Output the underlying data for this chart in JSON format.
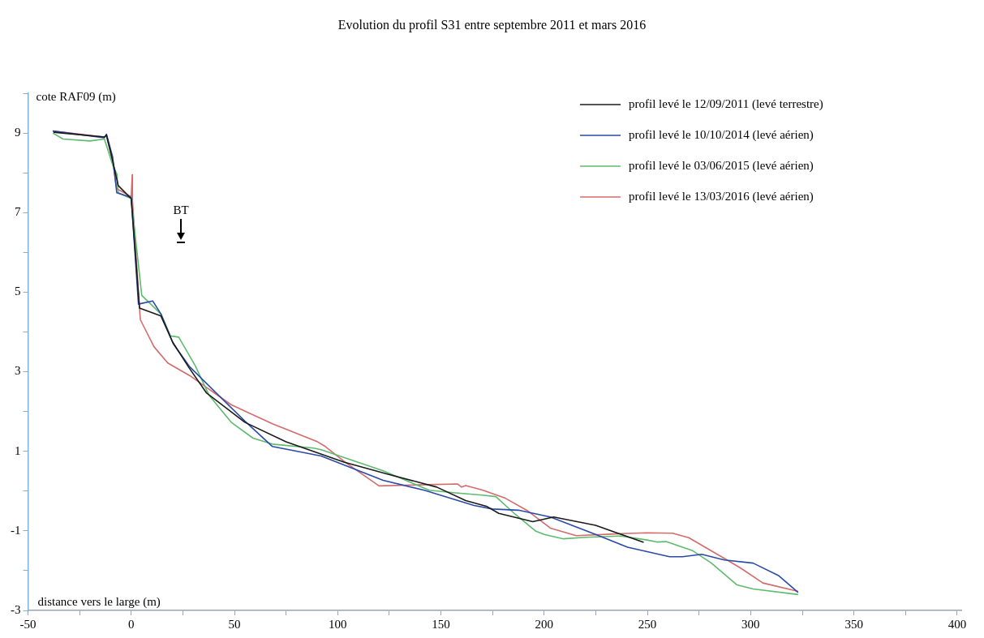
{
  "chart_data": {
    "type": "line",
    "title": "Evolution du profil S31 entre septembre 2011 et mars 2016",
    "xlabel": "distance vers le large (m)",
    "ylabel": "cote RAF09 (m)",
    "xlim": [
      -50,
      402
    ],
    "ylim": [
      -3,
      10
    ],
    "xticks": [
      -50,
      {
        "value": -25,
        "label": null
      },
      0,
      {
        "value": 25,
        "label": null
      },
      50,
      {
        "value": 75,
        "label": null
      },
      100,
      {
        "value": 125,
        "label": null
      },
      150,
      {
        "value": 175,
        "label": null
      },
      200,
      {
        "value": 225,
        "label": null
      },
      250,
      {
        "value": 275,
        "label": null
      },
      300,
      {
        "value": 325,
        "label": null
      },
      350,
      {
        "value": 375,
        "label": null
      },
      400
    ],
    "yticks": [
      -3,
      {
        "value": -2,
        "label": null
      },
      -1,
      {
        "value": 0,
        "label": null
      },
      1,
      {
        "value": 2,
        "label": null
      },
      3,
      {
        "value": 4,
        "label": null
      },
      5,
      {
        "value": 6,
        "label": null
      },
      7,
      {
        "value": 8,
        "label": null
      },
      9,
      {
        "value": 10,
        "label": null
      }
    ],
    "grid": false,
    "legend": "top right",
    "marker": "none",
    "line_style": "solid",
    "annotations": [
      "BT"
    ],
    "series": [
      {
        "name": "profil levé le 12/09/2011 (levé terrestre)",
        "color": "#1a1a1a",
        "x": [
          -37.6,
          -13,
          -12,
          -9,
          -6.3,
          0,
          4,
          14.4,
          20,
          28,
          36.4,
          55,
          75,
          103,
          124,
          148,
          162,
          172,
          178,
          194.5,
          204.6,
          224.9,
          248.2
        ],
        "values": [
          9.02,
          8.9,
          8.95,
          8.3,
          7.68,
          7.35,
          4.6,
          4.4,
          3.75,
          3.1,
          2.47,
          1.73,
          1.24,
          0.73,
          0.43,
          0.1,
          -0.24,
          -0.38,
          -0.56,
          -0.77,
          -0.65,
          -0.86,
          -1.29
        ]
      },
      {
        "name": "profil levé le 10/10/2014 (levé aérien)",
        "color": "#2a4aa8",
        "x": [
          -38,
          -13,
          -12,
          -9,
          -7,
          0,
          3.5,
          10.4,
          14.4,
          20.4,
          28.4,
          55,
          68.4,
          92,
          122,
          142,
          166,
          175,
          187.5,
          203,
          224.9,
          240.4,
          260.7,
          267,
          276.3,
          287.2,
          301.2,
          313.7,
          323
        ],
        "values": [
          9.05,
          8.88,
          8.97,
          8.4,
          7.5,
          7.38,
          4.7,
          4.78,
          4.45,
          3.7,
          3.12,
          1.76,
          1.12,
          0.88,
          0.27,
          0.02,
          -0.36,
          -0.45,
          -0.48,
          -0.65,
          -1.09,
          -1.41,
          -1.65,
          -1.65,
          -1.59,
          -1.73,
          -1.81,
          -2.13,
          -2.55
        ]
      },
      {
        "name": "profil levé le 03/06/2015 (levé aérien)",
        "color": "#5dbb6e",
        "x": [
          -38,
          -33,
          -20,
          -13,
          -9,
          -6.9,
          -6.3,
          0,
          5.1,
          14.4,
          19,
          23,
          31,
          37.7,
          48.4,
          59,
          68.4,
          88.4,
          92,
          122,
          144.4,
          156,
          170,
          176.6,
          185.9,
          196,
          200,
          209.3,
          220.2,
          237.3,
          249.8,
          254.5,
          259,
          271.6,
          281,
          293.4,
          301.2,
          323
        ],
        "values": [
          9.0,
          8.85,
          8.8,
          8.85,
          8.2,
          7.96,
          7.5,
          7.35,
          4.92,
          4.45,
          3.9,
          3.87,
          3.15,
          2.41,
          1.73,
          1.33,
          1.18,
          1.08,
          1.04,
          0.51,
          0.02,
          -0.04,
          -0.1,
          -0.14,
          -0.58,
          -1.01,
          -1.09,
          -1.2,
          -1.16,
          -1.13,
          -1.23,
          -1.28,
          -1.27,
          -1.49,
          -1.81,
          -2.36,
          -2.46,
          -2.6
        ]
      },
      {
        "name": "profil levé le 13/03/2016 (levé aérien)",
        "color": "#d46a6a",
        "x": [
          -38,
          -13,
          -12,
          -9,
          -7,
          0,
          0.5,
          0.6,
          4.4,
          11,
          17.7,
          28.4,
          48.4,
          68.4,
          89.8,
          94,
          104,
          120,
          143,
          158,
          160,
          162,
          169.8,
          181.2,
          192.1,
          203,
          215.5,
          237.3,
          249.8,
          262.2,
          270,
          287.2,
          295,
          305.9,
          323
        ],
        "values": [
          9.05,
          8.9,
          8.93,
          8.3,
          7.6,
          7.4,
          7.95,
          7.3,
          4.31,
          3.63,
          3.22,
          2.9,
          2.17,
          1.69,
          1.25,
          1.12,
          0.71,
          0.13,
          0.16,
          0.18,
          0.1,
          0.14,
          0.03,
          -0.18,
          -0.5,
          -0.93,
          -1.12,
          -1.07,
          -1.05,
          -1.06,
          -1.17,
          -1.69,
          -1.93,
          -2.31,
          -2.52
        ]
      }
    ]
  }
}
